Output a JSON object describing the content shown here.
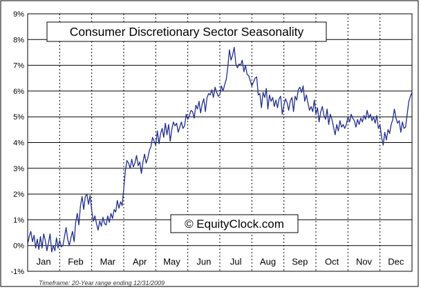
{
  "chart_data": {
    "type": "line",
    "title": "Consumer Discretionary Sector Seasonality",
    "watermark": "© EquityClock.com",
    "footnote": "Timeframe: 20-Year range ending 12/31/2009",
    "xlabel": "",
    "ylabel": "",
    "x_categories": [
      "Jan",
      "Feb",
      "Mar",
      "Apr",
      "May",
      "Jun",
      "Jul",
      "Aug",
      "Sep",
      "Oct",
      "Nov",
      "Dec"
    ],
    "y_ticks": [
      -1,
      0,
      1,
      2,
      3,
      4,
      5,
      6,
      7,
      8,
      9
    ],
    "y_tick_labels": [
      "-1%",
      "0%",
      "1%",
      "2%",
      "3%",
      "4%",
      "5%",
      "6%",
      "7%",
      "8%",
      "9%"
    ],
    "ylim": [
      -1,
      9
    ],
    "xlim": [
      0,
      12
    ],
    "grid": {
      "horizontal": true,
      "vertical_dashed": true
    },
    "line_color": "#1f2d8c",
    "grid_color": "#000000",
    "series": [
      {
        "x": [
          0.0,
          0.05,
          0.1,
          0.15,
          0.2,
          0.25,
          0.3,
          0.35,
          0.4,
          0.45,
          0.5,
          0.55,
          0.6,
          0.65,
          0.7,
          0.75,
          0.8,
          0.85,
          0.9,
          0.95,
          1.0,
          1.05,
          1.1,
          1.15,
          1.2,
          1.25,
          1.3,
          1.35,
          1.4,
          1.45,
          1.5,
          1.55,
          1.6,
          1.65,
          1.7,
          1.75,
          1.8,
          1.85,
          1.9,
          1.95,
          2.0,
          2.05,
          2.1,
          2.15,
          2.2,
          2.25,
          2.3,
          2.35,
          2.4,
          2.45,
          2.5,
          2.55,
          2.6,
          2.65,
          2.7,
          2.75,
          2.8,
          2.85,
          2.9,
          2.95,
          3.0,
          3.05,
          3.1,
          3.15,
          3.2,
          3.25,
          3.3,
          3.35,
          3.4,
          3.45,
          3.5,
          3.55,
          3.6,
          3.65,
          3.7,
          3.75,
          3.8,
          3.85,
          3.9,
          3.95,
          4.0,
          4.05,
          4.1,
          4.15,
          4.2,
          4.25,
          4.3,
          4.35,
          4.4,
          4.45,
          4.5,
          4.55,
          4.6,
          4.65,
          4.7,
          4.75,
          4.8,
          4.85,
          4.9,
          4.95,
          5.0,
          5.05,
          5.1,
          5.15,
          5.2,
          5.25,
          5.3,
          5.35,
          5.4,
          5.45,
          5.5,
          5.55,
          5.6,
          5.65,
          5.7,
          5.75,
          5.8,
          5.85,
          5.9,
          5.95,
          6.0,
          6.05,
          6.1,
          6.15,
          6.2,
          6.25,
          6.3,
          6.35,
          6.4,
          6.45,
          6.5,
          6.55,
          6.6,
          6.65,
          6.7,
          6.75,
          6.8,
          6.85,
          6.9,
          6.95,
          7.0,
          7.05,
          7.1,
          7.15,
          7.2,
          7.25,
          7.3,
          7.35,
          7.4,
          7.45,
          7.5,
          7.55,
          7.6,
          7.65,
          7.7,
          7.75,
          7.8,
          7.85,
          7.9,
          7.95,
          8.0,
          8.05,
          8.1,
          8.15,
          8.2,
          8.25,
          8.3,
          8.35,
          8.4,
          8.45,
          8.5,
          8.55,
          8.6,
          8.65,
          8.7,
          8.75,
          8.8,
          8.85,
          8.9,
          8.95,
          9.0,
          9.05,
          9.1,
          9.15,
          9.2,
          9.25,
          9.3,
          9.35,
          9.4,
          9.45,
          9.5,
          9.55,
          9.6,
          9.65,
          9.7,
          9.75,
          9.8,
          9.85,
          9.9,
          9.95,
          10.0,
          10.05,
          10.1,
          10.15,
          10.2,
          10.25,
          10.3,
          10.35,
          10.4,
          10.45,
          10.5,
          10.55,
          10.6,
          10.65,
          10.7,
          10.75,
          10.8,
          10.85,
          10.9,
          10.95,
          11.0,
          11.05,
          11.1,
          11.15,
          11.2,
          11.25,
          11.3,
          11.35,
          11.4,
          11.45,
          11.5,
          11.55,
          11.6,
          11.65,
          11.7,
          11.75,
          11.8,
          11.85,
          11.9,
          11.95,
          12.0
        ],
        "y": [
          0.05,
          0.35,
          0.55,
          0.15,
          0.4,
          -0.1,
          0.25,
          -0.15,
          0.35,
          -0.1,
          0.45,
          0.2,
          -0.2,
          0.1,
          0.45,
          -0.25,
          0.0,
          -0.2,
          0.3,
          -0.1,
          0.2,
          -0.05,
          0.0,
          0.35,
          0.7,
          0.25,
          0.0,
          0.3,
          0.55,
          0.15,
          0.9,
          1.25,
          0.8,
          1.55,
          1.9,
          1.4,
          1.9,
          2.0,
          1.6,
          1.95,
          1.35,
          0.95,
          1.15,
          0.85,
          0.6,
          0.95,
          0.75,
          1.1,
          0.85,
          0.8,
          1.15,
          0.9,
          1.25,
          1.05,
          1.4,
          1.3,
          1.75,
          1.45,
          1.7,
          1.55,
          2.2,
          2.9,
          3.3,
          3.2,
          3.0,
          3.35,
          3.05,
          3.2,
          3.5,
          3.1,
          3.25,
          2.8,
          3.25,
          3.55,
          3.2,
          3.4,
          3.7,
          3.85,
          4.2,
          4.05,
          3.9,
          4.45,
          3.95,
          4.35,
          4.55,
          4.2,
          4.75,
          4.3,
          4.7,
          4.05,
          4.5,
          4.8,
          4.65,
          4.75,
          4.4,
          4.6,
          4.8,
          4.55,
          4.65,
          5.1,
          4.9,
          5.05,
          5.25,
          5.2,
          4.95,
          5.45,
          5.3,
          5.6,
          5.15,
          5.5,
          5.7,
          5.2,
          5.75,
          5.9,
          5.85,
          6.05,
          5.75,
          6.15,
          5.95,
          5.8,
          5.85,
          6.2,
          6.0,
          6.25,
          6.45,
          6.95,
          7.6,
          7.2,
          7.4,
          7.7,
          7.05,
          6.9,
          7.05,
          7.0,
          7.2,
          6.75,
          7.0,
          6.65,
          6.6,
          6.4,
          6.2,
          6.35,
          6.5,
          6.55,
          5.85,
          5.9,
          5.35,
          5.95,
          5.75,
          6.1,
          5.3,
          5.85,
          5.6,
          5.75,
          5.4,
          5.65,
          5.35,
          5.7,
          5.8,
          5.1,
          5.45,
          5.7,
          5.55,
          5.25,
          5.6,
          5.75,
          5.2,
          5.8,
          5.65,
          6.05,
          6.15,
          5.95,
          6.2,
          5.6,
          5.85,
          5.55,
          5.25,
          5.4,
          5.2,
          5.65,
          5.1,
          5.35,
          4.8,
          5.2,
          5.4,
          5.05,
          4.9,
          5.3,
          4.7,
          5.1,
          4.9,
          4.6,
          4.3,
          4.7,
          4.45,
          4.85,
          4.6,
          4.7,
          4.55,
          4.7,
          5.0,
          4.8,
          5.1,
          4.95,
          4.85,
          4.6,
          4.9,
          4.7,
          4.95,
          4.8,
          5.05,
          4.9,
          5.25,
          4.95,
          5.1,
          4.85,
          5.0,
          4.75,
          5.05,
          4.55,
          4.7,
          4.2,
          3.9,
          4.4,
          4.1,
          4.5,
          4.35,
          4.7,
          4.9,
          5.3,
          4.95,
          4.75,
          4.85,
          4.4,
          4.8,
          4.55,
          4.6,
          5.1,
          5.6,
          5.8,
          5.95
        ]
      }
    ]
  }
}
